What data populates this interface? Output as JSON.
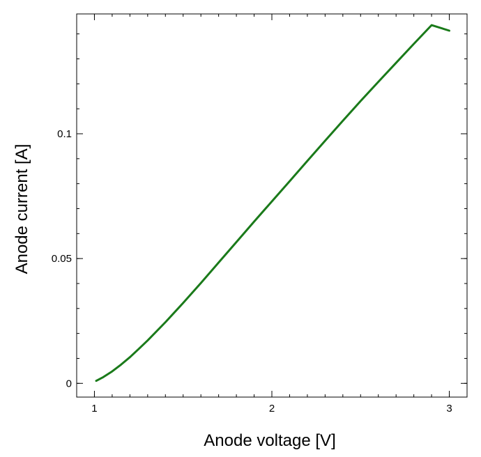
{
  "chart_data": {
    "type": "line",
    "xlabel": "Anode voltage [V]",
    "ylabel": "Anode current [A]",
    "xlim": [
      0.9,
      3.1
    ],
    "ylim": [
      -0.0055,
      0.148
    ],
    "x_ticks": [
      1,
      2,
      3
    ],
    "x_tick_labels": [
      "1",
      "2",
      "3"
    ],
    "x_minor_step": 0.1,
    "y_ticks": [
      0,
      0.05,
      0.1
    ],
    "y_tick_labels": [
      "0",
      "0.05",
      "0.1"
    ],
    "y_minor_step": 0.01,
    "grid": false,
    "legend": "none",
    "series": [
      {
        "color": "#1a7a1a",
        "x": [
          1.01,
          1.05,
          1.1,
          1.15,
          1.2,
          1.25,
          1.3,
          1.4,
          1.5,
          1.6,
          1.7,
          1.8,
          1.9,
          2.0,
          2.1,
          2.2,
          2.3,
          2.4,
          2.5,
          2.6,
          2.7,
          2.8,
          2.9,
          3.0
        ],
        "y": [
          0.001,
          0.0025,
          0.0048,
          0.0075,
          0.0105,
          0.0138,
          0.0172,
          0.0245,
          0.0322,
          0.0402,
          0.0484,
          0.0566,
          0.0648,
          0.0729,
          0.081,
          0.0891,
          0.0972,
          0.1052,
          0.1131,
          0.1208,
          0.1284,
          0.136,
          0.1435,
          0.1413
        ]
      }
    ]
  }
}
